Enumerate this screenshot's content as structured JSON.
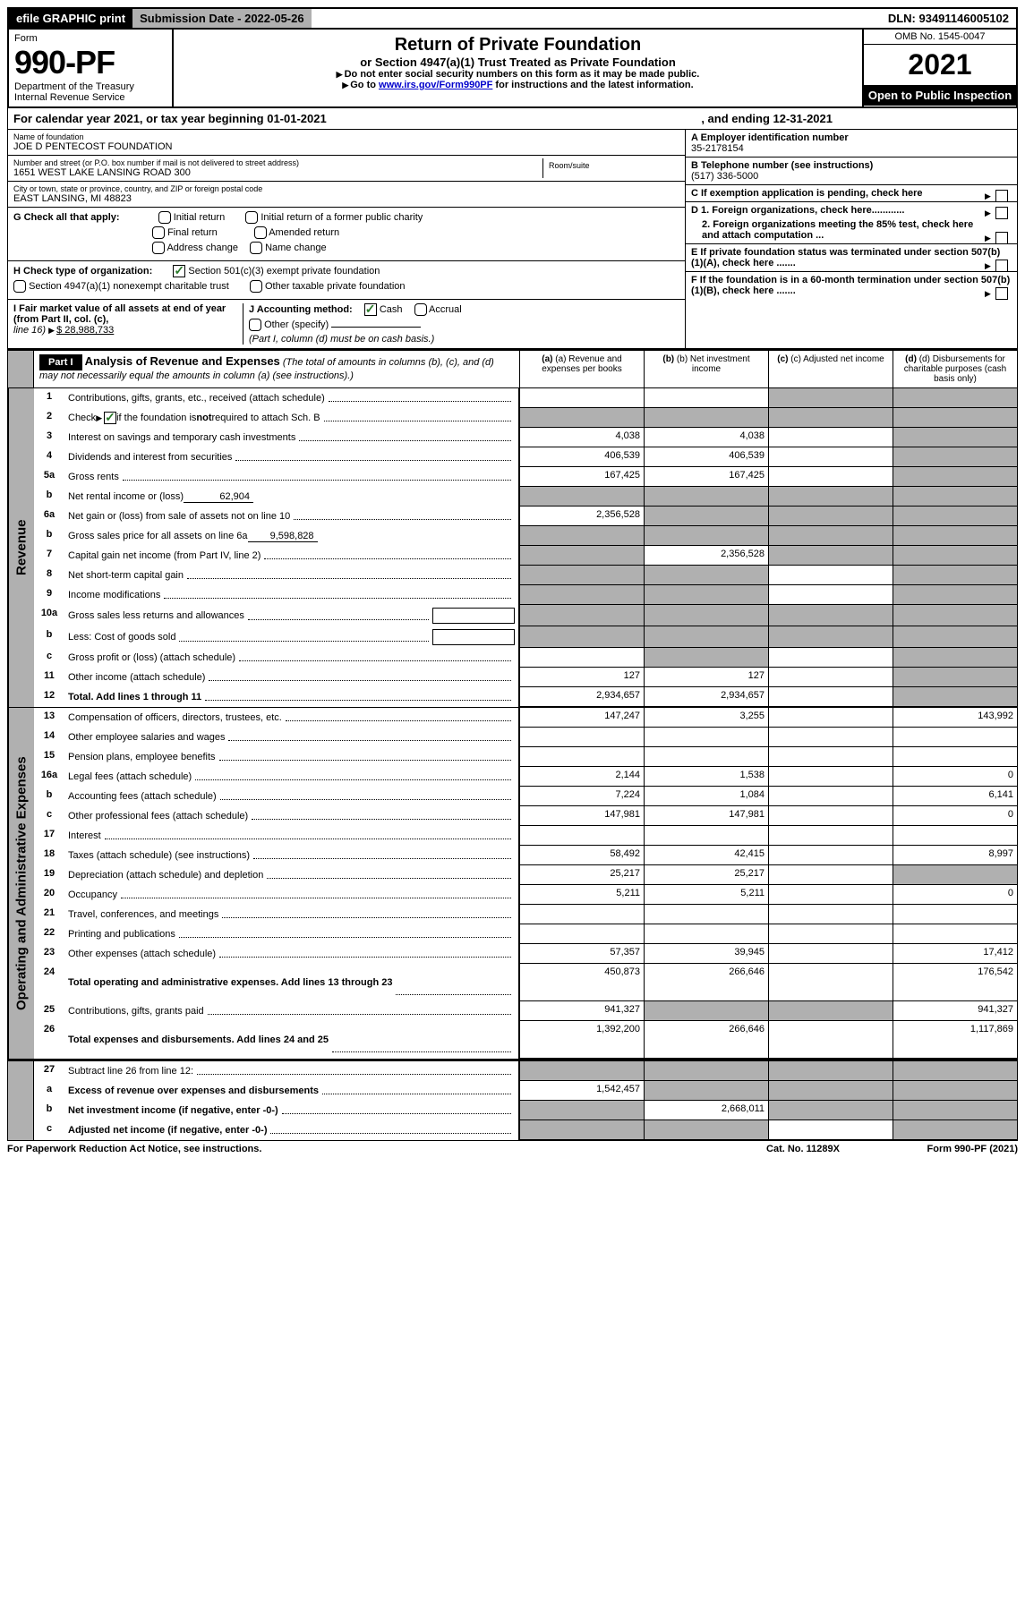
{
  "top": {
    "efile": "efile GRAPHIC print",
    "subDate": "Submission Date - 2022-05-26",
    "dln": "DLN: 93491146005102"
  },
  "header": {
    "formWord": "Form",
    "formNum": "990-PF",
    "dept": "Department of the Treasury",
    "irs": "Internal Revenue Service",
    "title": "Return of Private Foundation",
    "subtitle": "or Section 4947(a)(1) Trust Treated as Private Foundation",
    "note1": "Do not enter social security numbers on this form as it may be made public.",
    "note2pre": "Go to ",
    "note2link": "www.irs.gov/Form990PF",
    "note2post": " for instructions and the latest information.",
    "omb": "OMB No. 1545-0047",
    "year": "2021",
    "open": "Open to Public Inspection"
  },
  "calYear": {
    "pre": "For calendar year 2021, or tax year beginning 01-01-2021",
    "post": ", and ending 12-31-2021"
  },
  "infoLeft": {
    "nameLabel": "Name of foundation",
    "name": "JOE D PENTECOST FOUNDATION",
    "addrLabel": "Number and street (or P.O. box number if mail is not delivered to street address)",
    "addr": "1651 WEST LAKE LANSING ROAD 300",
    "roomLabel": "Room/suite",
    "cityLabel": "City or town, state or province, country, and ZIP or foreign postal code",
    "city": "EAST LANSING, MI  48823",
    "g": "G Check all that apply:",
    "gInitial": "Initial return",
    "gInitialFormer": "Initial return of a former public charity",
    "gFinal": "Final return",
    "gAmended": "Amended return",
    "gAddrChange": "Address change",
    "gNameChange": "Name change",
    "h": "H Check type of organization:",
    "h1": "Section 501(c)(3) exempt private foundation",
    "h2": "Section 4947(a)(1) nonexempt charitable trust",
    "h3": "Other taxable private foundation",
    "i1": "I Fair market value of all assets at end of year (from Part II, col. (c),",
    "i2pre": "line 16) ",
    "i2val": "$  28,988,733",
    "j": "J Accounting method:",
    "jCash": "Cash",
    "jAccrual": "Accrual",
    "jOther": "Other (specify)",
    "jNote": "(Part I, column (d) must be on cash basis.)"
  },
  "infoRight": {
    "aLabel": "A Employer identification number",
    "aVal": "35-2178154",
    "bLabel": "B Telephone number (see instructions)",
    "bVal": "(517) 336-5000",
    "c": "C If exemption application is pending, check here",
    "d1": "D 1. Foreign organizations, check here............",
    "d2": "2. Foreign organizations meeting the 85% test, check here and attach computation ...",
    "e": "E If private foundation status was terminated under section 507(b)(1)(A), check here .......",
    "f": "F If the foundation is in a 60-month termination under section 507(b)(1)(B), check here .......  "
  },
  "part1": {
    "label": "Part I",
    "title": "Analysis of Revenue and Expenses",
    "titleNote": " (The total of amounts in columns (b), (c), and (d) may not necessarily equal the amounts in column (a) (see instructions).)",
    "colA": "(a) Revenue and expenses per books",
    "colB": "(b) Net investment income",
    "colC": "(c) Adjusted net income",
    "colD": "(d) Disbursements for charitable purposes (cash basis only)"
  },
  "sideLabels": {
    "revenue": "Revenue",
    "expenses": "Operating and Administrative Expenses"
  },
  "rows": [
    {
      "n": "1",
      "d": "Contributions, gifts, grants, etc., received (attach schedule)",
      "a": "",
      "b": "",
      "c": "grey",
      "dv": "grey"
    },
    {
      "n": "2",
      "d": "Check ▶ ☑ if the foundation is not required to attach Sch. B",
      "a": "grey",
      "b": "grey",
      "c": "grey",
      "dv": "grey",
      "special": "check"
    },
    {
      "n": "3",
      "d": "Interest on savings and temporary cash investments",
      "a": "4,038",
      "b": "4,038",
      "c": "",
      "dv": "grey"
    },
    {
      "n": "4",
      "d": "Dividends and interest from securities",
      "a": "406,539",
      "b": "406,539",
      "c": "",
      "dv": "grey"
    },
    {
      "n": "5a",
      "d": "Gross rents",
      "a": "167,425",
      "b": "167,425",
      "c": "",
      "dv": "grey"
    },
    {
      "n": "b",
      "d": "Net rental income or (loss)",
      "inline": "62,904",
      "a": "grey",
      "b": "grey",
      "c": "grey",
      "dv": "grey"
    },
    {
      "n": "6a",
      "d": "Net gain or (loss) from sale of assets not on line 10",
      "a": "2,356,528",
      "b": "grey",
      "c": "grey",
      "dv": "grey"
    },
    {
      "n": "b",
      "d": "Gross sales price for all assets on line 6a",
      "inline": "9,598,828",
      "a": "grey",
      "b": "grey",
      "c": "grey",
      "dv": "grey"
    },
    {
      "n": "7",
      "d": "Capital gain net income (from Part IV, line 2)",
      "a": "grey",
      "b": "2,356,528",
      "c": "grey",
      "dv": "grey"
    },
    {
      "n": "8",
      "d": "Net short-term capital gain",
      "a": "grey",
      "b": "grey",
      "c": "",
      "dv": "grey"
    },
    {
      "n": "9",
      "d": "Income modifications",
      "a": "grey",
      "b": "grey",
      "c": "",
      "dv": "grey"
    },
    {
      "n": "10a",
      "d": "Gross sales less returns and allowances",
      "inlinebox": true,
      "a": "grey",
      "b": "grey",
      "c": "grey",
      "dv": "grey"
    },
    {
      "n": "b",
      "d": "Less: Cost of goods sold",
      "inlinebox": true,
      "a": "grey",
      "b": "grey",
      "c": "grey",
      "dv": "grey"
    },
    {
      "n": "c",
      "d": "Gross profit or (loss) (attach schedule)",
      "a": "",
      "b": "grey",
      "c": "",
      "dv": "grey"
    },
    {
      "n": "11",
      "d": "Other income (attach schedule)",
      "a": "127",
      "b": "127",
      "c": "",
      "dv": "grey"
    },
    {
      "n": "12",
      "d": "Total. Add lines 1 through 11",
      "a": "2,934,657",
      "b": "2,934,657",
      "c": "",
      "dv": "grey",
      "bold": true
    }
  ],
  "expRows": [
    {
      "n": "13",
      "d": "Compensation of officers, directors, trustees, etc.",
      "a": "147,247",
      "b": "3,255",
      "c": "",
      "dv": "143,992"
    },
    {
      "n": "14",
      "d": "Other employee salaries and wages",
      "a": "",
      "b": "",
      "c": "",
      "dv": ""
    },
    {
      "n": "15",
      "d": "Pension plans, employee benefits",
      "a": "",
      "b": "",
      "c": "",
      "dv": ""
    },
    {
      "n": "16a",
      "d": "Legal fees (attach schedule)",
      "a": "2,144",
      "b": "1,538",
      "c": "",
      "dv": "0"
    },
    {
      "n": "b",
      "d": "Accounting fees (attach schedule)",
      "a": "7,224",
      "b": "1,084",
      "c": "",
      "dv": "6,141"
    },
    {
      "n": "c",
      "d": "Other professional fees (attach schedule)",
      "a": "147,981",
      "b": "147,981",
      "c": "",
      "dv": "0"
    },
    {
      "n": "17",
      "d": "Interest",
      "a": "",
      "b": "",
      "c": "",
      "dv": ""
    },
    {
      "n": "18",
      "d": "Taxes (attach schedule) (see instructions)",
      "a": "58,492",
      "b": "42,415",
      "c": "",
      "dv": "8,997"
    },
    {
      "n": "19",
      "d": "Depreciation (attach schedule) and depletion",
      "a": "25,217",
      "b": "25,217",
      "c": "",
      "dv": "grey"
    },
    {
      "n": "20",
      "d": "Occupancy",
      "a": "5,211",
      "b": "5,211",
      "c": "",
      "dv": "0"
    },
    {
      "n": "21",
      "d": "Travel, conferences, and meetings",
      "a": "",
      "b": "",
      "c": "",
      "dv": ""
    },
    {
      "n": "22",
      "d": "Printing and publications",
      "a": "",
      "b": "",
      "c": "",
      "dv": ""
    },
    {
      "n": "23",
      "d": "Other expenses (attach schedule)",
      "a": "57,357",
      "b": "39,945",
      "c": "",
      "dv": "17,412"
    },
    {
      "n": "24",
      "d": "Total operating and administrative expenses. Add lines 13 through 23",
      "a": "450,873",
      "b": "266,646",
      "c": "",
      "dv": "176,542",
      "bold": true,
      "tall": true
    },
    {
      "n": "25",
      "d": "Contributions, gifts, grants paid",
      "a": "941,327",
      "b": "grey",
      "c": "grey",
      "dv": "941,327"
    },
    {
      "n": "26",
      "d": "Total expenses and disbursements. Add lines 24 and 25",
      "a": "1,392,200",
      "b": "266,646",
      "c": "",
      "dv": "1,117,869",
      "bold": true,
      "tall": true
    }
  ],
  "netRows": [
    {
      "n": "27",
      "d": "Subtract line 26 from line 12:",
      "a": "grey",
      "b": "grey",
      "c": "grey",
      "dv": "grey"
    },
    {
      "n": "a",
      "d": "Excess of revenue over expenses and disbursements",
      "a": "1,542,457",
      "b": "grey",
      "c": "grey",
      "dv": "grey",
      "bold": true
    },
    {
      "n": "b",
      "d": "Net investment income (if negative, enter -0-)",
      "a": "grey",
      "b": "2,668,011",
      "c": "grey",
      "dv": "grey",
      "bold": true
    },
    {
      "n": "c",
      "d": "Adjusted net income (if negative, enter -0-)",
      "a": "grey",
      "b": "grey",
      "c": "",
      "dv": "grey",
      "bold": true
    }
  ],
  "footer": {
    "left": "For Paperwork Reduction Act Notice, see instructions.",
    "mid": "Cat. No. 11289X",
    "right": "Form 990-PF (2021)"
  }
}
